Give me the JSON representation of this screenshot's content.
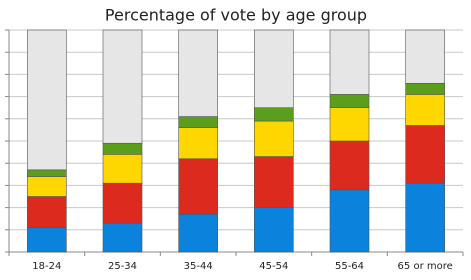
{
  "chart_data": {
    "type": "stacked_bar",
    "title": "Percentage of vote by age group",
    "categories": [
      "18-24",
      "25-34",
      "35-44",
      "45-54",
      "55-64",
      "65 or more"
    ],
    "series": [
      {
        "color": "#0b82dc",
        "values": [
          11,
          13,
          17,
          20,
          28,
          31
        ]
      },
      {
        "color": "#dc2a1e",
        "values": [
          14,
          18,
          25,
          23,
          22,
          26
        ]
      },
      {
        "color": "#ffd700",
        "values": [
          9,
          13,
          14,
          16,
          15,
          14
        ]
      },
      {
        "color": "#5a9e1c",
        "values": [
          3,
          5,
          5,
          6,
          6,
          5
        ]
      },
      {
        "color": "#e6e6e6",
        "values": [
          63,
          51,
          39,
          35,
          29,
          24
        ]
      }
    ],
    "ylim": [
      0,
      100
    ],
    "yticks": [
      0,
      10,
      20,
      30,
      40,
      50,
      60,
      70,
      80,
      90,
      100
    ],
    "grid": true
  }
}
